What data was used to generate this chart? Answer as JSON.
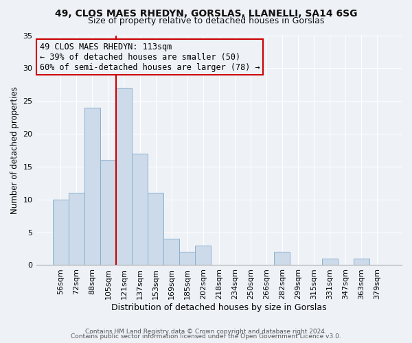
{
  "title1": "49, CLOS MAES RHEDYN, GORSLAS, LLANELLI, SA14 6SG",
  "title2": "Size of property relative to detached houses in Gorslas",
  "xlabel": "Distribution of detached houses by size in Gorslas",
  "ylabel": "Number of detached properties",
  "footer1": "Contains HM Land Registry data © Crown copyright and database right 2024.",
  "footer2": "Contains public sector information licensed under the Open Government Licence v3.0.",
  "bin_labels": [
    "56sqm",
    "72sqm",
    "88sqm",
    "105sqm",
    "121sqm",
    "137sqm",
    "153sqm",
    "169sqm",
    "185sqm",
    "202sqm",
    "218sqm",
    "234sqm",
    "250sqm",
    "266sqm",
    "282sqm",
    "299sqm",
    "315sqm",
    "331sqm",
    "347sqm",
    "363sqm",
    "379sqm"
  ],
  "bin_values": [
    10,
    11,
    24,
    16,
    27,
    17,
    11,
    4,
    2,
    3,
    0,
    0,
    0,
    0,
    2,
    0,
    0,
    1,
    0,
    1,
    0
  ],
  "bar_color": "#ccdaea",
  "bar_edge_color": "#8ab0cc",
  "vline_color": "#cc0000",
  "annotation_text": "49 CLOS MAES RHEDYN: 113sqm\n← 39% of detached houses are smaller (50)\n60% of semi-detached houses are larger (78) →",
  "annotation_box_edgecolor": "#cc0000",
  "ylim": [
    0,
    35
  ],
  "yticks": [
    0,
    5,
    10,
    15,
    20,
    25,
    30,
    35
  ],
  "bg_color": "#eef2f7",
  "grid_color": "#ffffff",
  "title1_fontsize": 10,
  "title2_fontsize": 9,
  "xlabel_fontsize": 9,
  "ylabel_fontsize": 8.5,
  "tick_fontsize": 8,
  "annot_fontsize": 8.5,
  "footer_fontsize": 6.5
}
